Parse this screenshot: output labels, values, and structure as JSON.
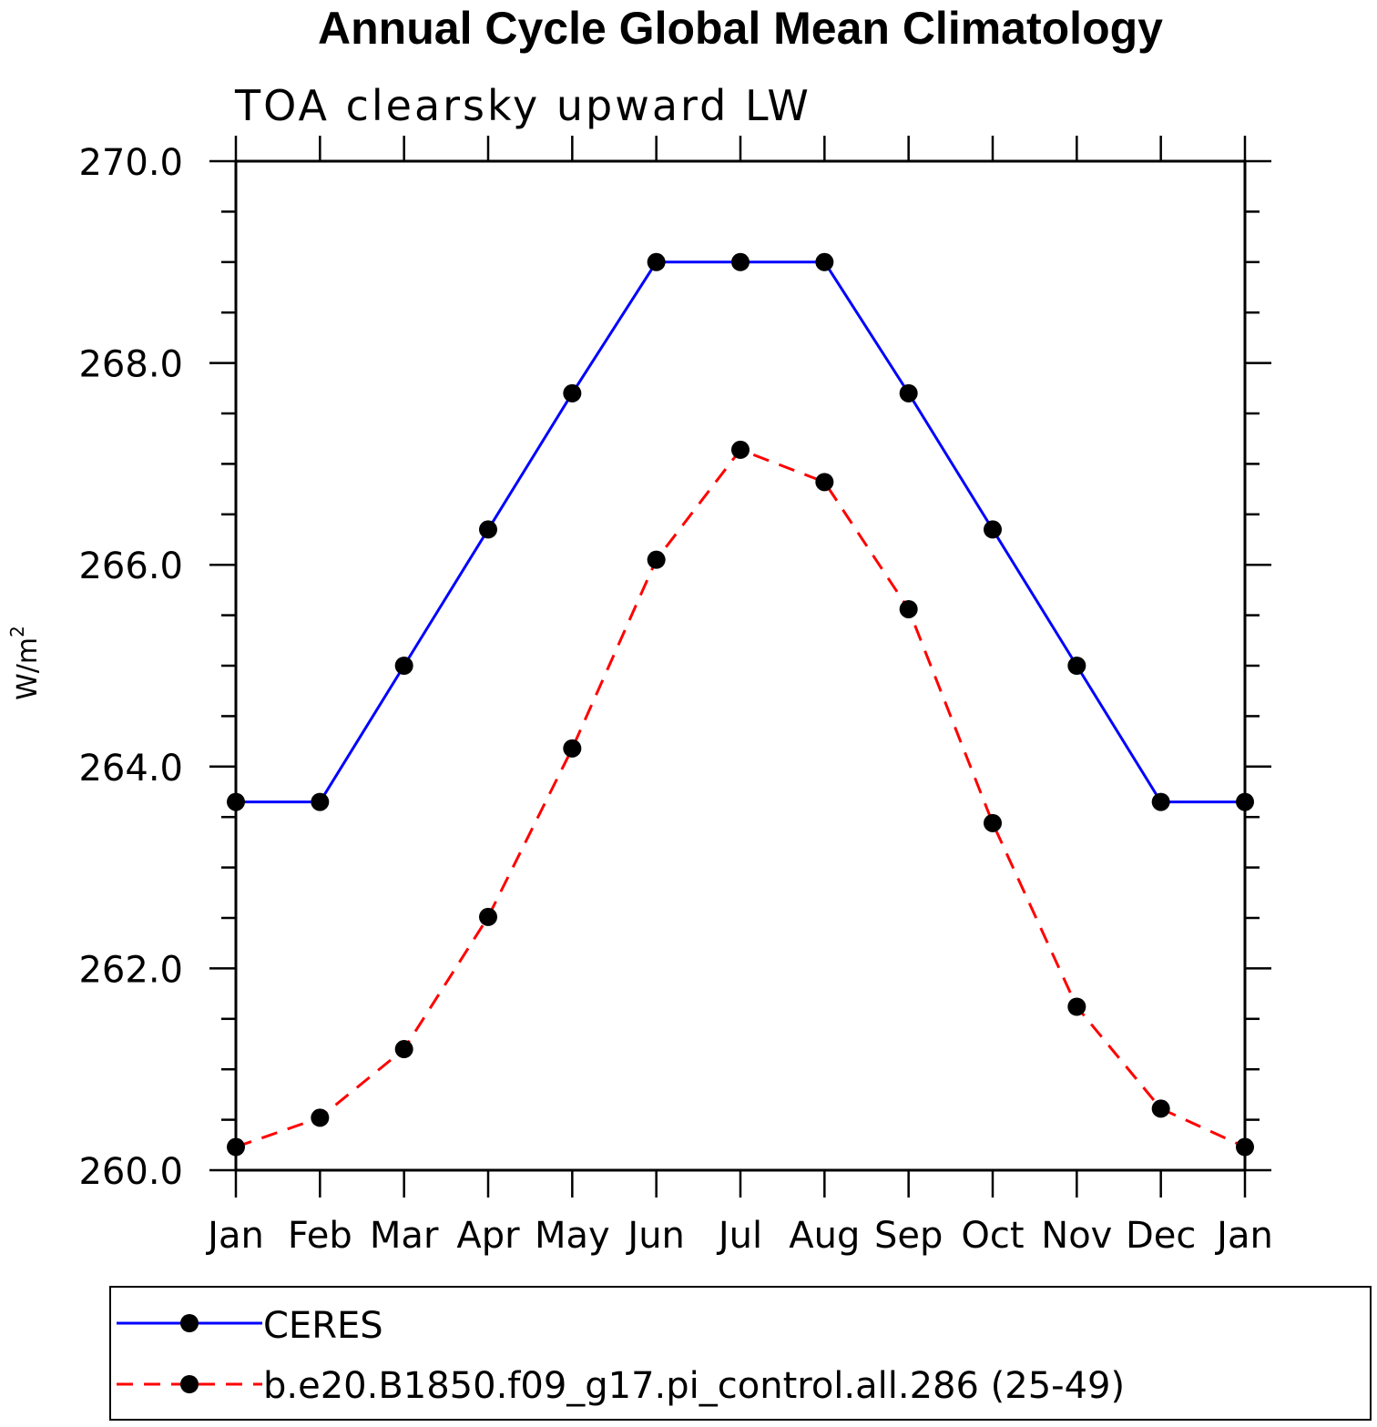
{
  "chart_data": {
    "type": "line",
    "title": "Annual Cycle Global Mean Climatology",
    "subtitle": "TOA clearsky upward LW",
    "ylabel": "W/m",
    "ylabel_superscript": "2",
    "xlabel": "",
    "categories": [
      "Jan",
      "Feb",
      "Mar",
      "Apr",
      "May",
      "Jun",
      "Jul",
      "Aug",
      "Sep",
      "Oct",
      "Nov",
      "Dec",
      "Jan"
    ],
    "ylim": [
      260.0,
      270.0
    ],
    "yticks": [
      "260.0",
      "262.0",
      "264.0",
      "266.0",
      "268.0",
      "270.0"
    ],
    "grid": false,
    "legend_position": "bottom",
    "series": [
      {
        "name": "CERES",
        "color": "#0000ff",
        "line_style": "solid",
        "marker": "filled-circle",
        "values": [
          263.65,
          263.65,
          265.0,
          266.35,
          267.7,
          269.0,
          269.0,
          269.0,
          267.7,
          266.35,
          265.0,
          263.65,
          263.65
        ]
      },
      {
        "name": "b.e20.B1850.f09_g17.pi_control.all.286 (25-49)",
        "color": "#ff0000",
        "line_style": "dashed",
        "marker": "filled-circle",
        "values": [
          260.23,
          260.52,
          261.2,
          262.51,
          264.18,
          266.05,
          267.14,
          266.82,
          265.56,
          263.44,
          261.62,
          260.61,
          260.23
        ]
      }
    ]
  }
}
